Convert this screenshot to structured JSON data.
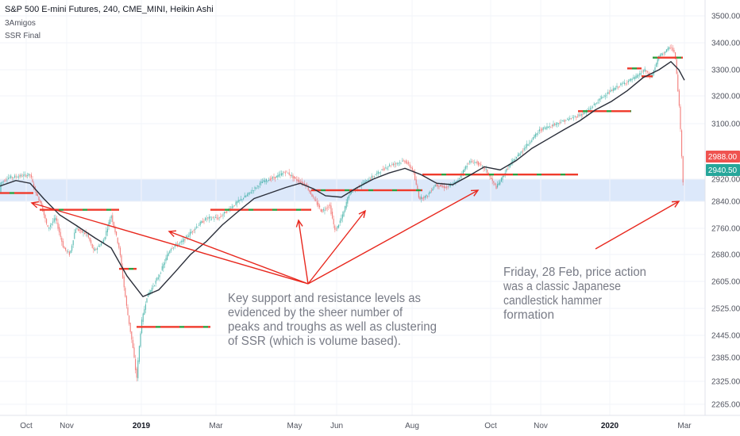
{
  "header": {
    "symbol": "S&P 500 E-mini Futures, 240, CME_MINI, Heikin Ashi",
    "indicator_1": "3Amigos",
    "indicator_2": "SSR Final"
  },
  "price_tags": {
    "close_badge": "2988.00",
    "current_badge": "2940.50"
  },
  "annotations": {
    "main_note": [
      "Key support and resistance levels as",
      "evidenced by the sheer number of",
      "peaks and troughs as well as clustering",
      "of SSR (which is volume based)."
    ],
    "hammer_note": [
      "Friday, 28 Feb, price action",
      "was a classic Japanese",
      "candlestick hammer",
      "formation"
    ]
  },
  "colors": {
    "band": "#dce8fa",
    "up": "#26a69a",
    "down": "#ef5350",
    "ma": "#2a2e39",
    "arrow": "#e8281e",
    "level_red": "#ef3b2c",
    "level_green": "#2e9e3e",
    "axis_text": "#50535e",
    "badge_red": "#ef5350",
    "badge_green": "#26a69a"
  },
  "chart_data": {
    "type": "line",
    "price_axis": [
      "3500.00",
      "3400.00",
      "3300.00",
      "3200.00",
      "3100.00",
      "2920.00",
      "2840.00",
      "2760.00",
      "2680.00",
      "2605.00",
      "2525.00",
      "2445.00",
      "2385.00",
      "2325.00",
      "2265.00"
    ],
    "time_axis": [
      "Oct",
      "Nov",
      "2019",
      "Mar",
      "May",
      "Jun",
      "Aug",
      "Oct",
      "Nov",
      "2020",
      "Mar"
    ],
    "support_zone": [
      2840,
      2920
    ],
    "series": [
      {
        "values": [
          [
            0,
            2905
          ],
          [
            10,
            2925
          ],
          [
            25,
            2930
          ],
          [
            38,
            2935
          ],
          [
            45,
            2870
          ],
          [
            52,
            2830
          ],
          [
            60,
            2760
          ],
          [
            70,
            2790
          ],
          [
            80,
            2700
          ],
          [
            88,
            2680
          ],
          [
            95,
            2760
          ],
          [
            110,
            2740
          ],
          [
            118,
            2690
          ],
          [
            130,
            2720
          ],
          [
            140,
            2800
          ],
          [
            150,
            2700
          ],
          [
            160,
            2520
          ],
          [
            168,
            2400
          ],
          [
            172,
            2330
          ],
          [
            178,
            2480
          ],
          [
            185,
            2560
          ],
          [
            200,
            2620
          ],
          [
            215,
            2700
          ],
          [
            230,
            2720
          ],
          [
            245,
            2760
          ],
          [
            260,
            2790
          ],
          [
            275,
            2790
          ],
          [
            290,
            2820
          ],
          [
            310,
            2860
          ],
          [
            330,
            2910
          ],
          [
            350,
            2930
          ],
          [
            360,
            2945
          ],
          [
            372,
            2920
          ],
          [
            385,
            2900
          ],
          [
            395,
            2850
          ],
          [
            405,
            2810
          ],
          [
            415,
            2830
          ],
          [
            422,
            2750
          ],
          [
            432,
            2800
          ],
          [
            440,
            2870
          ],
          [
            455,
            2900
          ],
          [
            470,
            2930
          ],
          [
            490,
            2965
          ],
          [
            510,
            2980
          ],
          [
            520,
            2950
          ],
          [
            528,
            2850
          ],
          [
            538,
            2860
          ],
          [
            548,
            2900
          ],
          [
            562,
            2890
          ],
          [
            575,
            2910
          ],
          [
            590,
            2975
          ],
          [
            600,
            2975
          ],
          [
            612,
            2950
          ],
          [
            625,
            2890
          ],
          [
            640,
            2960
          ],
          [
            660,
            3020
          ],
          [
            680,
            3080
          ],
          [
            700,
            3100
          ],
          [
            720,
            3120
          ],
          [
            738,
            3140
          ],
          [
            760,
            3200
          ],
          [
            780,
            3240
          ],
          [
            800,
            3270
          ],
          [
            812,
            3300
          ],
          [
            820,
            3270
          ],
          [
            830,
            3350
          ],
          [
            845,
            3385
          ],
          [
            850,
            3360
          ],
          [
            855,
            3180
          ],
          [
            858,
            3030
          ],
          [
            861,
            2870
          ]
        ]
      },
      {
        "values": [
          [
            0,
            2895
          ],
          [
            20,
            2915
          ],
          [
            38,
            2905
          ],
          [
            55,
            2850
          ],
          [
            75,
            2800
          ],
          [
            95,
            2770
          ],
          [
            120,
            2730
          ],
          [
            140,
            2700
          ],
          [
            160,
            2620
          ],
          [
            180,
            2560
          ],
          [
            200,
            2580
          ],
          [
            220,
            2630
          ],
          [
            240,
            2680
          ],
          [
            260,
            2720
          ],
          [
            280,
            2770
          ],
          [
            300,
            2810
          ],
          [
            320,
            2850
          ],
          [
            340,
            2870
          ],
          [
            360,
            2890
          ],
          [
            378,
            2905
          ],
          [
            395,
            2885
          ],
          [
            410,
            2860
          ],
          [
            430,
            2855
          ],
          [
            450,
            2890
          ],
          [
            470,
            2920
          ],
          [
            490,
            2940
          ],
          [
            510,
            2955
          ],
          [
            530,
            2935
          ],
          [
            550,
            2905
          ],
          [
            570,
            2900
          ],
          [
            590,
            2930
          ],
          [
            610,
            2960
          ],
          [
            630,
            2950
          ],
          [
            650,
            2980
          ],
          [
            670,
            3020
          ],
          [
            690,
            3050
          ],
          [
            710,
            3080
          ],
          [
            730,
            3110
          ],
          [
            750,
            3150
          ],
          [
            770,
            3180
          ],
          [
            790,
            3220
          ],
          [
            810,
            3270
          ],
          [
            830,
            3300
          ],
          [
            845,
            3330
          ],
          [
            855,
            3300
          ],
          [
            862,
            3260
          ]
        ]
      }
    ],
    "ssr_levels": [
      [
        0,
        42,
        2870
      ],
      [
        50,
        150,
        2815
      ],
      [
        150,
        172,
        2640
      ],
      [
        172,
        265,
        2470
      ],
      [
        265,
        392,
        2815
      ],
      [
        392,
        512,
        2880
      ],
      [
        512,
        532,
        2880
      ],
      [
        532,
        728,
        2935
      ],
      [
        728,
        795,
        3145
      ],
      [
        790,
        808,
        3305
      ],
      [
        808,
        822,
        3275
      ],
      [
        822,
        860,
        3345
      ]
    ]
  }
}
